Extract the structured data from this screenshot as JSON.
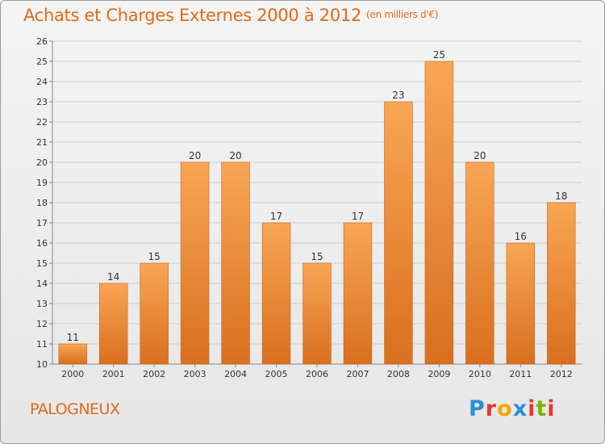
{
  "header": {
    "title": "Achats et Charges Externes 2000 à 2012",
    "subtitle": "(en milliers d'€)"
  },
  "footer": {
    "commune": "PALOGNEUX",
    "logo_letters": [
      "P",
      "r",
      "o",
      "x",
      "i",
      "t",
      "i"
    ],
    "logo_colors": [
      "#2a8fd6",
      "#e8392c",
      "#f2a800",
      "#2a8fd6",
      "#e8392c",
      "#7ab800",
      "#e8392c"
    ]
  },
  "colors": {
    "bar_top": "#f8a655",
    "bar_bottom": "#d96f1e",
    "grid": "#cfcfcf",
    "axis_text": "#333333",
    "accent": "#e06a1a"
  },
  "chart_data": {
    "type": "bar",
    "categories": [
      "2000",
      "2001",
      "2002",
      "2003",
      "2004",
      "2005",
      "2006",
      "2007",
      "2008",
      "2009",
      "2010",
      "2011",
      "2012"
    ],
    "values": [
      11,
      14,
      15,
      20,
      20,
      17,
      15,
      17,
      23,
      25,
      20,
      16,
      18
    ],
    "data_labels": [
      "11",
      "14",
      "15",
      "20",
      "20",
      "17",
      "15",
      "17",
      "23",
      "25",
      "20",
      "16",
      "18"
    ],
    "yticks": [
      "10",
      "11",
      "12",
      "13",
      "14",
      "15",
      "16",
      "17",
      "18",
      "19",
      "20",
      "21",
      "22",
      "23",
      "24",
      "25",
      "26"
    ],
    "ylim": [
      10,
      26
    ],
    "grid": true,
    "legend": "none"
  }
}
